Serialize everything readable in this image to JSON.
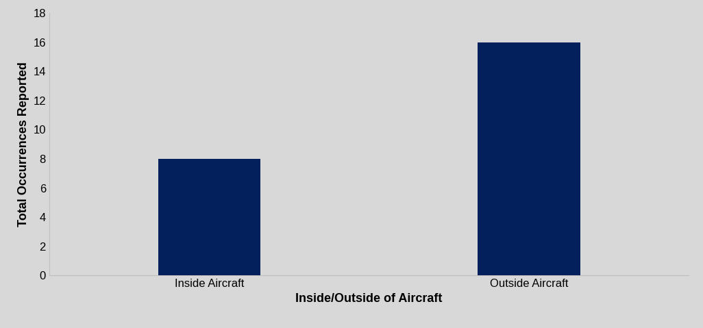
{
  "chart_data": {
    "type": "bar",
    "x_label": "Inside/Outside of Aircraft",
    "y_label": "Total Occurrences Reported",
    "categories": [
      "Inside Aircraft",
      "Outside Aircraft"
    ],
    "values": [
      8,
      16
    ],
    "color": "#03205c",
    "ylim": [
      0,
      18
    ],
    "yticks": [
      0,
      2,
      4,
      6,
      8,
      10,
      12,
      14,
      16,
      18
    ],
    "grid": false
  }
}
